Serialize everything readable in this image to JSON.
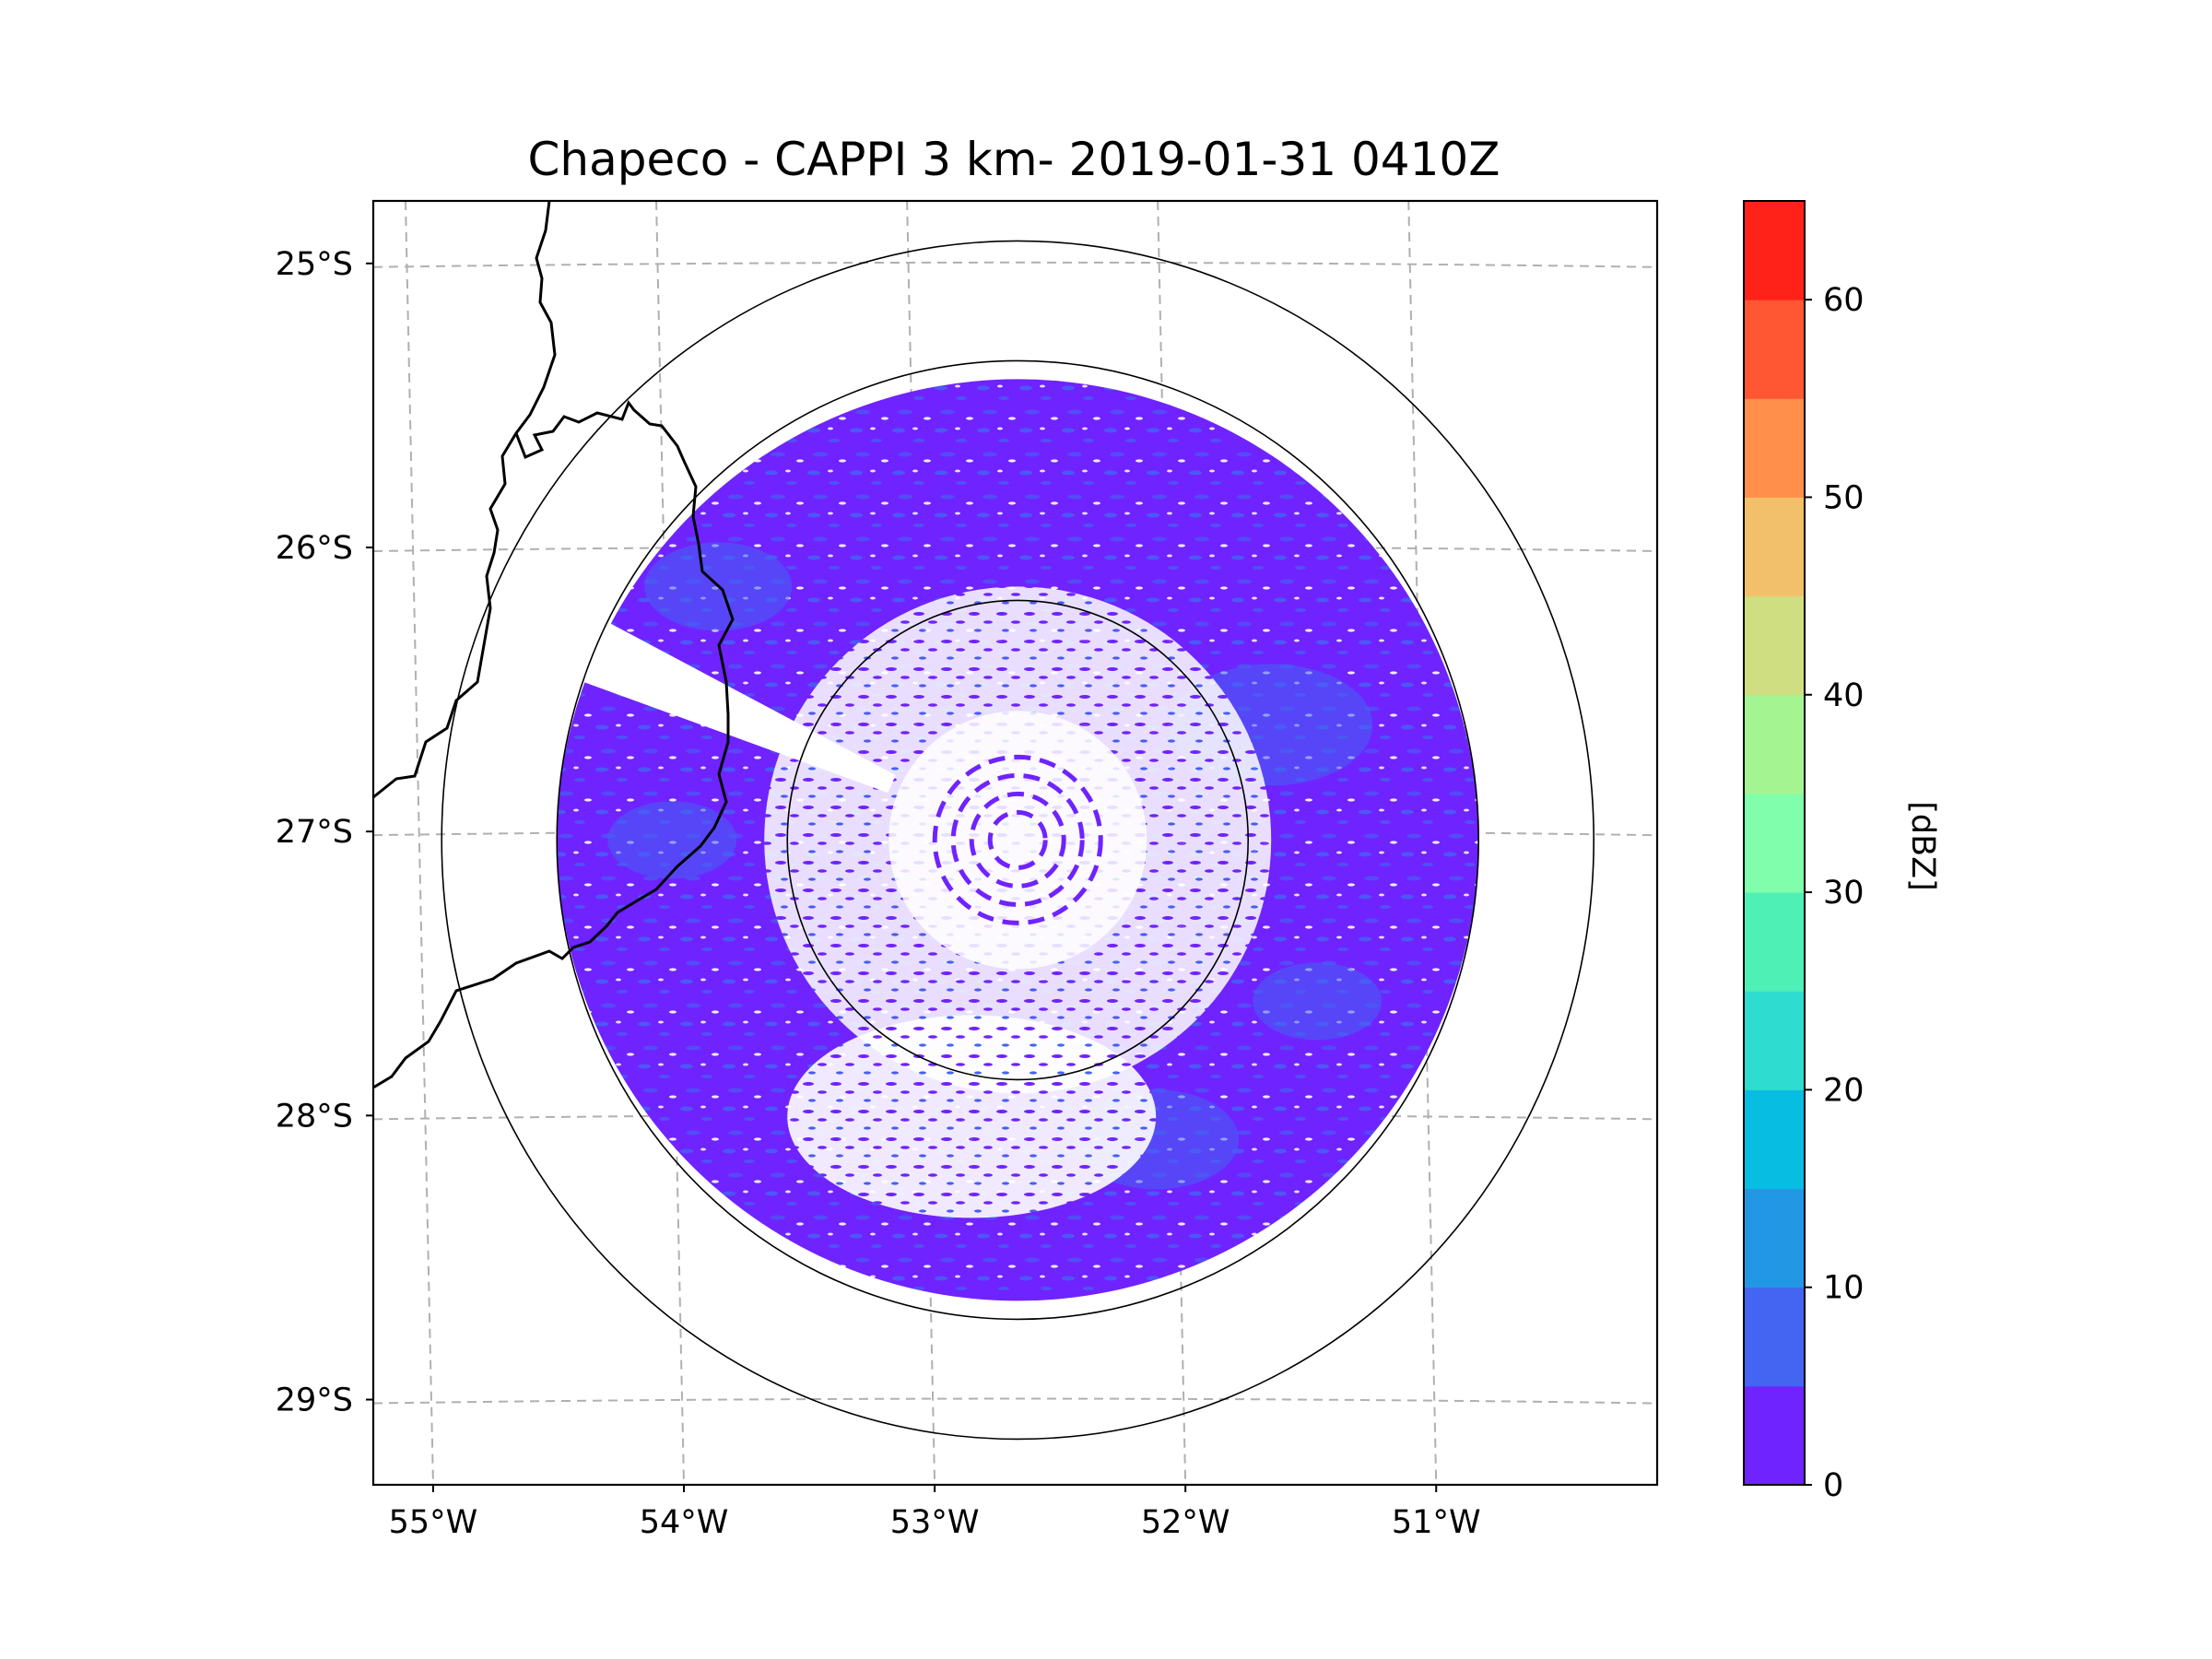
{
  "chart_data": {
    "type": "heatmap",
    "title": "Chapeco - CAPPI 3 km- 2019-01-31 0410Z",
    "map": {
      "lon_range": [
        -55.18,
        -50.06
      ],
      "lat_range": [
        -29.3,
        -24.78
      ],
      "lon_ticks": [
        -55,
        -54,
        -53,
        -52,
        -51
      ],
      "lon_tick_labels": [
        "55°W",
        "54°W",
        "53°W",
        "52°W",
        "51°W"
      ],
      "lat_ticks": [
        -25,
        -26,
        -27,
        -28,
        -29
      ],
      "lat_tick_labels": [
        "25°S",
        "26°S",
        "27°S",
        "28°S",
        "29°S"
      ],
      "gridlines": true,
      "coastlines": "country borders",
      "radar_center": {
        "lon": -52.61,
        "lat": -27.03
      },
      "range_rings_km": [
        100,
        200,
        250
      ],
      "data_range_km": 200
    },
    "colorbar": {
      "label": "[dBZ]",
      "min": 0,
      "max": 65,
      "step": 5,
      "ticks": [
        0,
        10,
        20,
        30,
        40,
        50,
        60
      ],
      "colors": [
        "#6f23ff",
        "#4365f2",
        "#2298e5",
        "#07bde2",
        "#2edcd0",
        "#4ef0b6",
        "#80feab",
        "#a4f591",
        "#cfde81",
        "#f2c06b",
        "#ff8f4a",
        "#ff5633",
        "#ff2219"
      ]
    },
    "field": {
      "dominant_dbz": [
        0,
        5
      ],
      "dominant_color": "#6f23ff",
      "secondary_dbz": [
        5,
        10
      ],
      "secondary_color": "#4365f2",
      "beam_blocked_sector_deg": [
        290,
        298
      ]
    }
  }
}
